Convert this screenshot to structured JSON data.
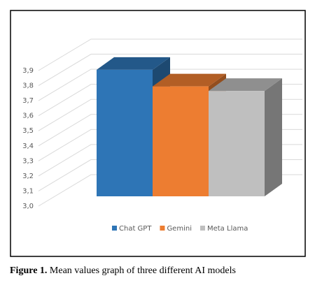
{
  "chart_data": {
    "type": "bar3d",
    "categories": [
      "Chat GPT",
      "Gemini",
      "Meta Llama"
    ],
    "values": [
      3.84,
      3.73,
      3.7
    ],
    "colors": [
      "#2e75b6",
      "#ed7d31",
      "#bfbfbf"
    ],
    "ylim": [
      3.0,
      3.9
    ],
    "yticks": [
      {
        "value": 3.0,
        "label": "3,0"
      },
      {
        "value": 3.1,
        "label": "3,1"
      },
      {
        "value": 3.2,
        "label": "3,2"
      },
      {
        "value": 3.3,
        "label": "3,3"
      },
      {
        "value": 3.4,
        "label": "3,4"
      },
      {
        "value": 3.5,
        "label": "3,5"
      },
      {
        "value": 3.6,
        "label": "3,6"
      },
      {
        "value": 3.7,
        "label": "3,7"
      },
      {
        "value": 3.8,
        "label": "3,8"
      },
      {
        "value": 3.9,
        "label": "3,9"
      }
    ],
    "grid": true,
    "legend": "bottom",
    "figure_label": "Figure 1.",
    "caption": "Mean values graph of three different AI models"
  }
}
